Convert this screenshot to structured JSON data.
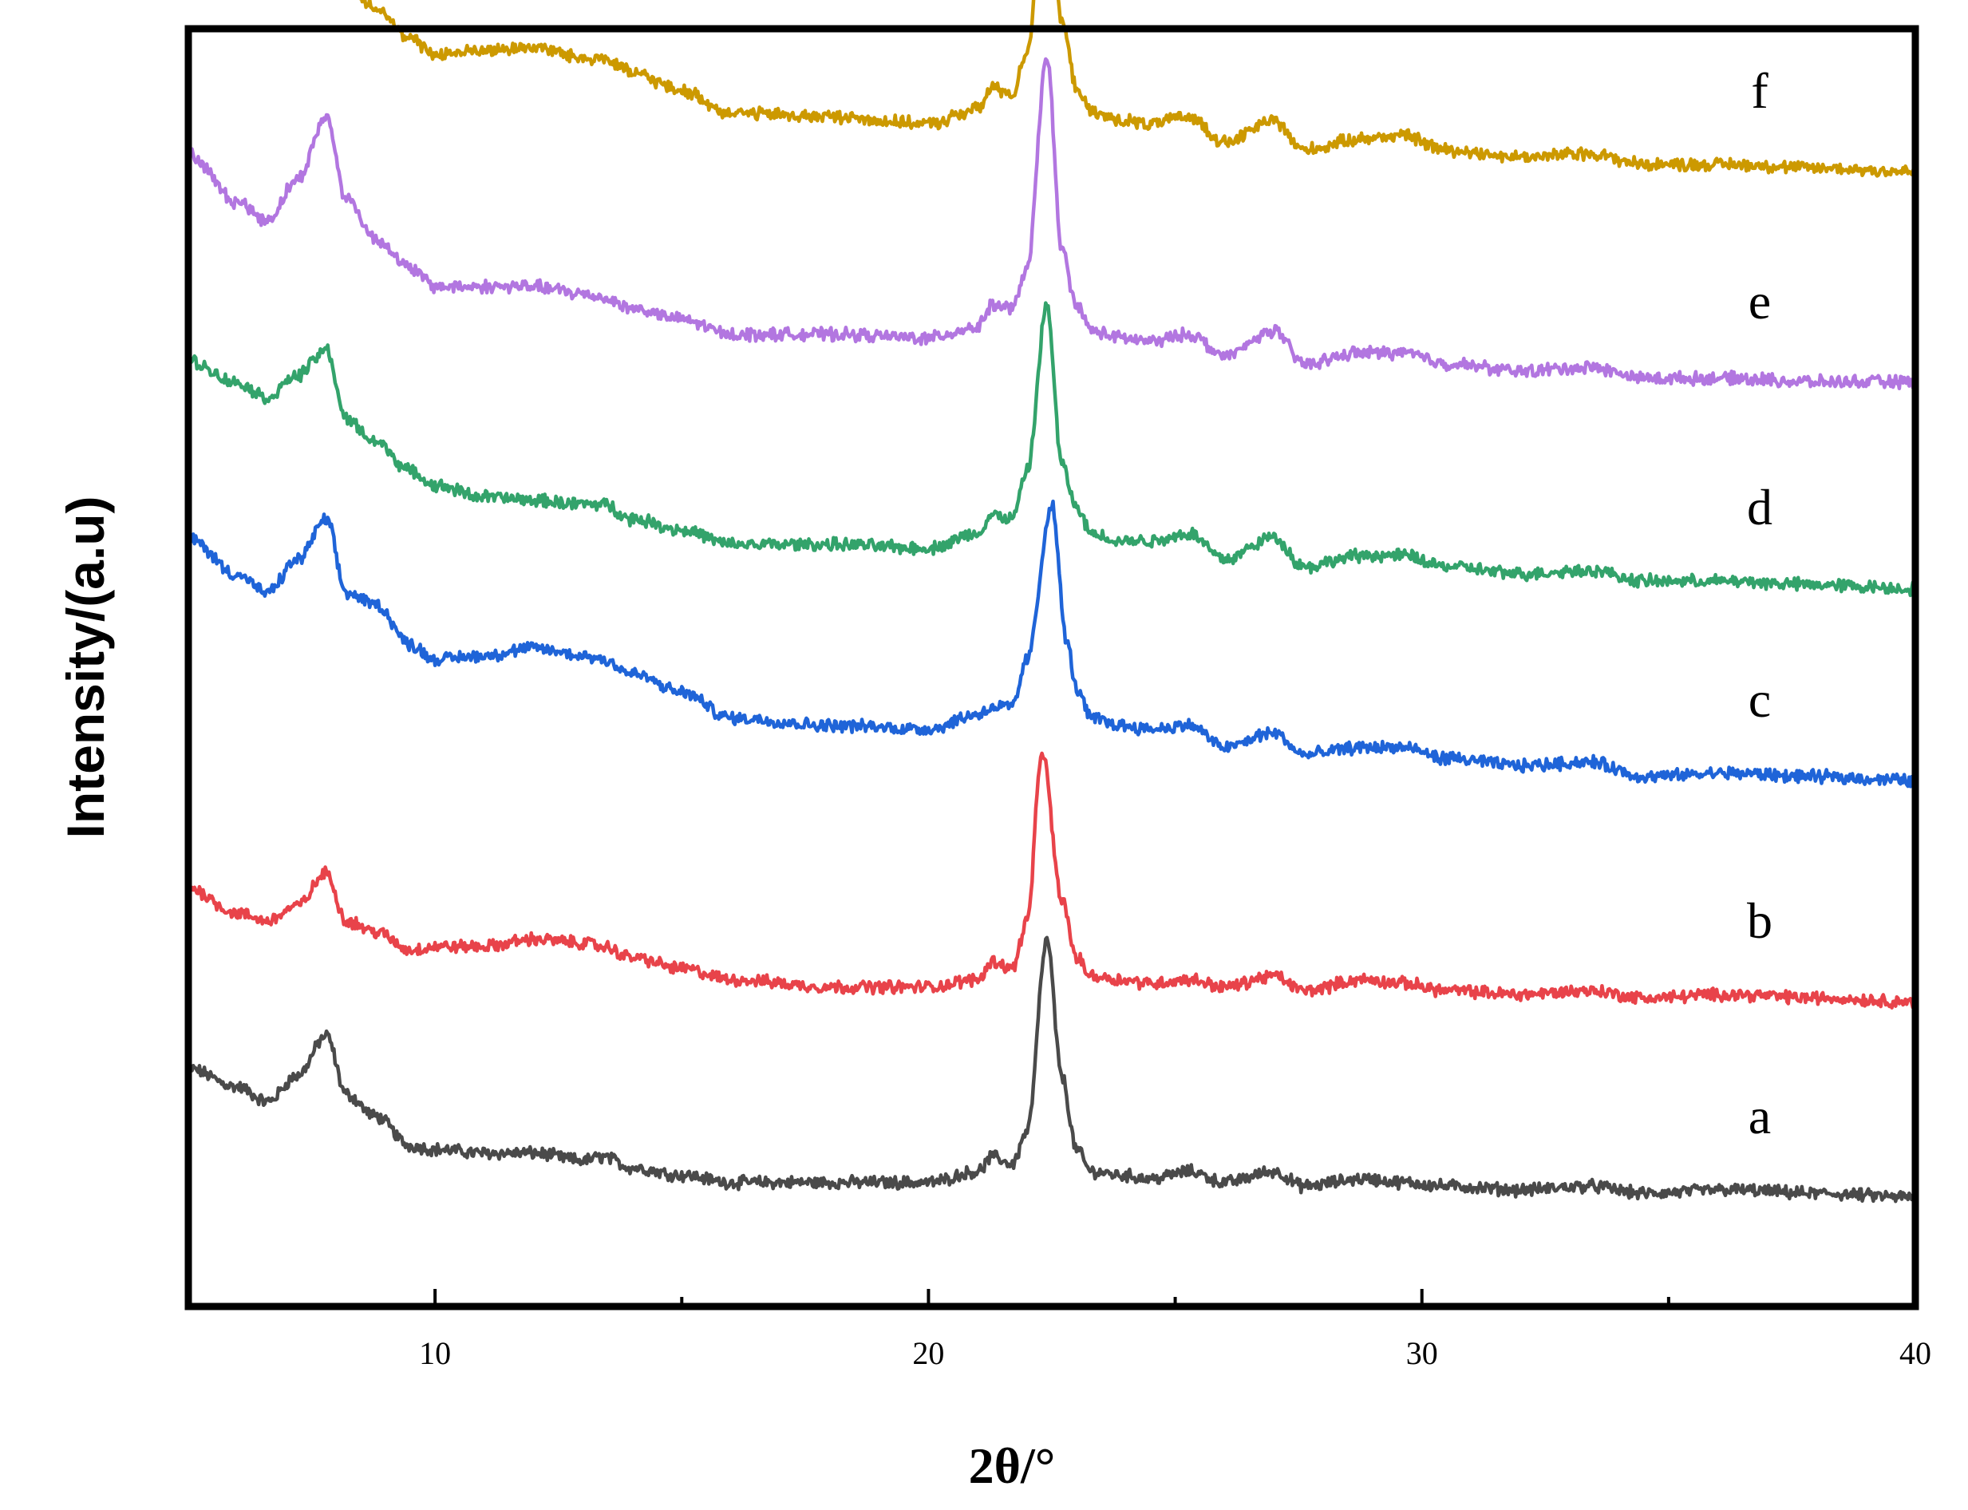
{
  "chart_data": {
    "type": "line",
    "xlabel": "2θ/°",
    "ylabel": "Intensity/(a.u)",
    "xlim": [
      5,
      40
    ],
    "x_ticks": [
      10,
      20,
      30,
      40
    ],
    "x_minor_ticks": [
      15,
      25,
      35
    ],
    "y_ticks": [],
    "grid": false,
    "legend": "none",
    "note": "Series are vertically stacked; intensity values are arbitrary units relative to each trace's baseline.",
    "peak_markers_2theta": [
      7.8,
      8.8,
      21.3,
      22.4,
      23.0,
      23.9,
      25.3,
      27.0,
      28.8,
      29.6,
      33.4,
      36.2
    ],
    "series": [
      {
        "name": "a",
        "color": "#4a4a4a",
        "offset": 0,
        "x": [
          5,
          6,
          6.6,
          7.2,
          7.8,
          8.2,
          8.8,
          9.5,
          10,
          11,
          12,
          13,
          13.4,
          14,
          15,
          16,
          18,
          20,
          21,
          21.3,
          21.7,
          22.0,
          22.4,
          22.7,
          23.0,
          23.3,
          23.9,
          24.5,
          25.3,
          26,
          27.0,
          27.6,
          28.8,
          29.6,
          30.5,
          32,
          33.4,
          34.5,
          36.2,
          38,
          40
        ],
        "y": [
          0.35,
          0.3,
          0.26,
          0.33,
          0.44,
          0.28,
          0.22,
          0.14,
          0.13,
          0.12,
          0.12,
          0.1,
          0.11,
          0.08,
          0.06,
          0.04,
          0.04,
          0.04,
          0.07,
          0.11,
          0.09,
          0.18,
          0.7,
          0.33,
          0.13,
          0.07,
          0.06,
          0.05,
          0.07,
          0.04,
          0.07,
          0.03,
          0.05,
          0.04,
          0.03,
          0.02,
          0.03,
          0.01,
          0.02,
          0.01,
          0.0
        ]
      },
      {
        "name": "b",
        "color": "#e8434a",
        "offset": 1,
        "x": [
          5,
          6,
          6.6,
          7.2,
          7.8,
          8.2,
          8.8,
          9.5,
          10,
          11,
          12,
          13,
          13.4,
          14,
          15,
          16,
          18,
          20,
          21,
          21.3,
          21.7,
          22.0,
          22.3,
          22.7,
          23.0,
          23.3,
          23.9,
          24.5,
          25.3,
          26,
          27.0,
          27.6,
          28.8,
          29.6,
          30.5,
          32,
          33.4,
          34.5,
          36.2,
          38,
          40
        ],
        "y": [
          0.31,
          0.24,
          0.22,
          0.26,
          0.35,
          0.22,
          0.19,
          0.14,
          0.15,
          0.15,
          0.17,
          0.16,
          0.15,
          0.12,
          0.09,
          0.06,
          0.04,
          0.04,
          0.06,
          0.11,
          0.09,
          0.22,
          0.68,
          0.28,
          0.12,
          0.07,
          0.06,
          0.05,
          0.06,
          0.04,
          0.07,
          0.03,
          0.06,
          0.05,
          0.03,
          0.02,
          0.03,
          0.01,
          0.02,
          0.01,
          0.0
        ]
      },
      {
        "name": "c",
        "color": "#1f64d8",
        "offset": 2,
        "x": [
          5,
          6,
          6.6,
          7.2,
          7.8,
          8.2,
          8.8,
          9.5,
          10,
          11,
          12,
          13,
          13.4,
          14,
          15,
          16,
          18,
          20,
          21,
          21.3,
          21.7,
          22.0,
          22.5,
          22.8,
          23.0,
          23.3,
          23.9,
          24.5,
          25.3,
          26,
          27.0,
          27.6,
          28.8,
          29.6,
          30.5,
          32,
          33.4,
          34.5,
          36.2,
          38,
          40
        ],
        "y": [
          0.73,
          0.63,
          0.58,
          0.67,
          0.78,
          0.58,
          0.55,
          0.44,
          0.4,
          0.41,
          0.43,
          0.41,
          0.4,
          0.36,
          0.31,
          0.24,
          0.22,
          0.21,
          0.25,
          0.27,
          0.27,
          0.4,
          0.82,
          0.45,
          0.32,
          0.24,
          0.22,
          0.21,
          0.22,
          0.16,
          0.2,
          0.14,
          0.16,
          0.16,
          0.13,
          0.11,
          0.12,
          0.08,
          0.09,
          0.08,
          0.07
        ]
      },
      {
        "name": "d",
        "color": "#33a36b",
        "offset": 3,
        "x": [
          5,
          6,
          6.6,
          7.2,
          7.8,
          8.2,
          8.8,
          9.5,
          10,
          11,
          12,
          13,
          13.4,
          14,
          15,
          16,
          18,
          20,
          21,
          21.3,
          21.7,
          22.0,
          22.4,
          22.7,
          23.0,
          23.3,
          23.9,
          24.5,
          25.3,
          26,
          27.0,
          27.6,
          28.8,
          29.6,
          30.5,
          32,
          33.4,
          34.5,
          36.2,
          38,
          40
        ],
        "y": [
          0.68,
          0.62,
          0.58,
          0.64,
          0.71,
          0.52,
          0.46,
          0.38,
          0.34,
          0.31,
          0.3,
          0.29,
          0.29,
          0.25,
          0.22,
          0.18,
          0.18,
          0.17,
          0.21,
          0.26,
          0.25,
          0.38,
          0.83,
          0.4,
          0.28,
          0.21,
          0.19,
          0.19,
          0.21,
          0.14,
          0.2,
          0.12,
          0.15,
          0.15,
          0.12,
          0.1,
          0.11,
          0.08,
          0.08,
          0.07,
          0.06
        ]
      },
      {
        "name": "e",
        "color": "#b276e0",
        "offset": 4,
        "x": [
          5,
          6,
          6.6,
          7.2,
          7.8,
          8.2,
          8.8,
          9.5,
          10,
          11,
          12,
          13,
          13.4,
          14,
          15,
          16,
          18,
          20,
          21,
          21.3,
          21.7,
          22.0,
          22.4,
          22.7,
          23.0,
          23.3,
          23.9,
          24.5,
          25.3,
          26,
          27.0,
          27.6,
          28.8,
          29.6,
          30.5,
          32,
          33.4,
          34.5,
          36.2,
          38,
          40
        ],
        "y": [
          0.71,
          0.58,
          0.53,
          0.64,
          0.81,
          0.59,
          0.48,
          0.4,
          0.35,
          0.35,
          0.35,
          0.33,
          0.32,
          0.29,
          0.26,
          0.22,
          0.22,
          0.21,
          0.24,
          0.3,
          0.29,
          0.4,
          0.98,
          0.45,
          0.3,
          0.23,
          0.21,
          0.2,
          0.22,
          0.16,
          0.23,
          0.14,
          0.17,
          0.17,
          0.14,
          0.12,
          0.13,
          0.1,
          0.1,
          0.09,
          0.09
        ]
      },
      {
        "name": "f",
        "color": "#cc9900",
        "offset": 5,
        "x": [
          5,
          6,
          6.6,
          7.2,
          7.8,
          8.2,
          8.8,
          9.5,
          10,
          11,
          12,
          13,
          13.4,
          14,
          15,
          16,
          18,
          20,
          21,
          21.3,
          21.7,
          22.0,
          22.4,
          22.7,
          23.0,
          23.3,
          23.9,
          24.5,
          25.3,
          26,
          27.0,
          27.6,
          28.8,
          29.6,
          30.5,
          32,
          33.4,
          34.5,
          36.2,
          38,
          40
        ],
        "y": [
          0.81,
          0.71,
          0.67,
          0.75,
          0.86,
          0.64,
          0.58,
          0.49,
          0.45,
          0.46,
          0.47,
          0.44,
          0.44,
          0.4,
          0.35,
          0.29,
          0.28,
          0.26,
          0.3,
          0.36,
          0.34,
          0.46,
          1.02,
          0.54,
          0.36,
          0.29,
          0.27,
          0.26,
          0.28,
          0.21,
          0.27,
          0.19,
          0.22,
          0.23,
          0.19,
          0.17,
          0.18,
          0.15,
          0.15,
          0.14,
          0.13
        ]
      }
    ]
  }
}
